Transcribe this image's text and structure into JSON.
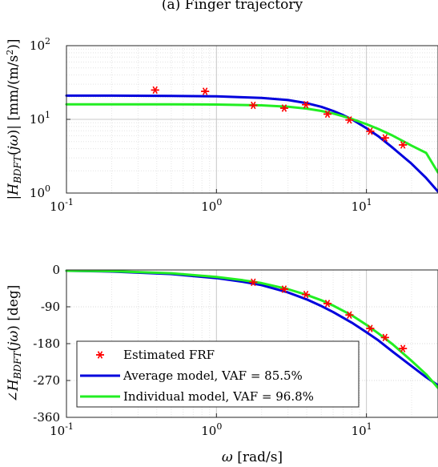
{
  "figure_title": "(a) Finger trajectory",
  "chart_data": [
    {
      "type": "scatter",
      "panel": "magnitude",
      "ylabel": "|H_BDFT(jω)| [mm/(m/s²)]",
      "xscale": "log",
      "yscale": "log",
      "xlim": [
        0.1,
        30
      ],
      "ylim": [
        1,
        100
      ],
      "grid": true,
      "x_tick_labels": [
        "10^-1",
        "10^0",
        "10^1"
      ],
      "y_tick_labels": [
        "10^0",
        "10^1",
        "10^2"
      ],
      "series": [
        {
          "name": "Estimated FRF",
          "kind": "markers",
          "color": "#ff0000",
          "x": [
            0.39,
            0.84,
            1.76,
            2.83,
            3.95,
            5.5,
            7.7,
            10.6,
            13.3,
            17.5
          ],
          "y": [
            25,
            24,
            15.5,
            14.2,
            15.8,
            11.8,
            9.8,
            6.9,
            5.6,
            4.5
          ]
        },
        {
          "name": "Average model, VAF = 85.5%",
          "kind": "line",
          "color": "#0000dd",
          "x": [
            0.1,
            0.2,
            0.5,
            1,
            2,
            3,
            4,
            5,
            6,
            7,
            8,
            10,
            12,
            15,
            20,
            25,
            30
          ],
          "y": [
            21,
            21,
            20.8,
            20.5,
            19.5,
            18.3,
            16.6,
            14.8,
            13,
            11.4,
            10,
            7.6,
            5.9,
            4.1,
            2.5,
            1.6,
            1.05
          ]
        },
        {
          "name": "Individual model, VAF = 96.8%",
          "kind": "line",
          "color": "#22ee22",
          "x": [
            0.1,
            0.2,
            0.5,
            1,
            2,
            3,
            4,
            5,
            6,
            7,
            8,
            10,
            12,
            15,
            20,
            25,
            30
          ],
          "y": [
            16,
            16,
            16,
            15.9,
            15.5,
            14.8,
            14,
            13,
            12,
            11,
            10.1,
            8.6,
            7.4,
            6,
            4.4,
            3.5,
            1.9
          ]
        }
      ]
    },
    {
      "type": "scatter",
      "panel": "phase",
      "xlabel": "ω [rad/s]",
      "ylabel": "∠H_BDFT(jω) [deg]",
      "xscale": "log",
      "xlim": [
        0.1,
        30
      ],
      "ylim": [
        -360,
        0
      ],
      "grid": true,
      "x_tick_labels": [
        "10^-1",
        "10^0",
        "10^1"
      ],
      "y_ticks": [
        0,
        -90,
        -180,
        -270,
        -360
      ],
      "legend_position": "bottom-left",
      "series": [
        {
          "name": "Estimated FRF",
          "kind": "markers",
          "color": "#ff0000",
          "x": [
            1.76,
            2.83,
            3.95,
            5.5,
            7.7,
            10.6,
            13.3,
            17.5
          ],
          "y": [
            -30,
            -47,
            -60,
            -82,
            -110,
            -143,
            -165,
            -192
          ]
        },
        {
          "name": "Average model, VAF = 85.5%",
          "kind": "line",
          "color": "#0000dd",
          "x": [
            0.1,
            0.2,
            0.5,
            1,
            1.5,
            2,
            3,
            4,
            5,
            6,
            8,
            10,
            12,
            15,
            20,
            25,
            30
          ],
          "y": [
            -2,
            -4,
            -10,
            -20,
            -29,
            -37,
            -55,
            -72,
            -88,
            -103,
            -129,
            -152,
            -172,
            -200,
            -235,
            -262,
            -282
          ]
        },
        {
          "name": "Individual model, VAF = 96.8%",
          "kind": "line",
          "color": "#22ee22",
          "x": [
            0.1,
            0.2,
            0.5,
            1,
            1.5,
            2,
            3,
            4,
            5,
            6,
            8,
            10,
            12,
            15,
            20,
            25,
            30
          ],
          "y": [
            -2,
            -3,
            -8,
            -17,
            -25,
            -32,
            -47,
            -61,
            -74,
            -87,
            -111,
            -134,
            -155,
            -182,
            -222,
            -255,
            -288
          ]
        }
      ]
    }
  ]
}
